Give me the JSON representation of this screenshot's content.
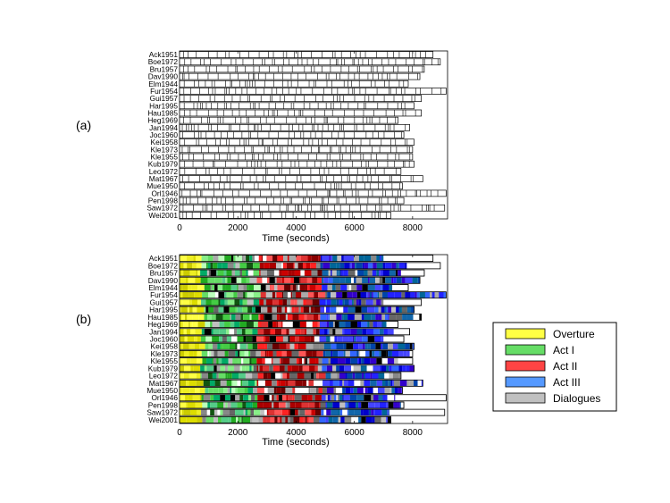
{
  "chart_data": [
    {
      "type": "bar",
      "panel_label": "(a)",
      "categories": [
        "Ack1951",
        "Boe1972",
        "Bru1957",
        "Dav1990",
        "Elm1944",
        "Fur1954",
        "Gui1957",
        "Har1995",
        "Hau1985",
        "Heg1969",
        "Jan1994",
        "Joc1960",
        "Kei1958",
        "Kle1973",
        "Kle1955",
        "Kub1979",
        "Leo1972",
        "Mat1967",
        "Mue1950",
        "Orl1946",
        "Pen1998",
        "Saw1972",
        "Wei2001"
      ],
      "values": [
        8700,
        8950,
        8400,
        8250,
        7850,
        9150,
        8300,
        8050,
        8300,
        7500,
        7900,
        7700,
        8050,
        8000,
        8000,
        8050,
        7600,
        8350,
        7650,
        9150,
        7700,
        9100,
        7250
      ],
      "xlabel": "Time (seconds)",
      "xlim": [
        0,
        9200
      ],
      "xticks": [
        "0",
        "2000",
        "4000",
        "6000",
        "8000"
      ],
      "grid": false
    },
    {
      "type": "bar",
      "panel_label": "(b)",
      "categories": [
        "Ack1951",
        "Boe1972",
        "Bru1957",
        "Dav1990",
        "Elm1944",
        "Fur1954",
        "Gui1957",
        "Har1995",
        "Hau1985",
        "Heg1969",
        "Jan1994",
        "Joc1960",
        "Kei1958",
        "Kle1973",
        "Kle1955",
        "Kub1979",
        "Leo1972",
        "Mat1967",
        "Mue1950",
        "Orl1946",
        "Pen1998",
        "Saw1972",
        "Wei2001"
      ],
      "values": [
        8700,
        8950,
        8400,
        8250,
        7850,
        9150,
        8300,
        8050,
        8300,
        7500,
        7900,
        7700,
        8050,
        8000,
        8000,
        8050,
        7600,
        8350,
        7650,
        9150,
        7700,
        9100,
        7250
      ],
      "colored_extent": [
        7000,
        7800,
        7600,
        8250,
        7300,
        9150,
        7000,
        8050,
        8300,
        7100,
        7350,
        7000,
        8050,
        7900,
        7500,
        8050,
        7600,
        8350,
        7650,
        7400,
        7600,
        7200,
        7250
      ],
      "sections": [
        {
          "name": "Overture",
          "color": "#ffff44",
          "approx_end": 700
        },
        {
          "name": "Act I",
          "color": "#44dd44",
          "approx_end": 2600
        },
        {
          "name": "Act II",
          "color": "#ff3333",
          "approx_end": 4800
        },
        {
          "name": "Act III",
          "color": "#4477ff",
          "approx_end": 9200
        }
      ],
      "xlabel": "Time (seconds)",
      "xlim": [
        0,
        9200
      ],
      "xticks": [
        "0",
        "2000",
        "4000",
        "6000",
        "8000"
      ],
      "grid": false,
      "legend": {
        "placement": "right",
        "entries": [
          {
            "name": "Overture",
            "color": "#ffff44"
          },
          {
            "name": "Act I",
            "color": "#66dd66"
          },
          {
            "name": "Act II",
            "color": "#ff4444"
          },
          {
            "name": "Act III",
            "color": "#5599ff"
          },
          {
            "name": "Dialogues",
            "color": "#c0c0c0"
          }
        ]
      }
    }
  ]
}
